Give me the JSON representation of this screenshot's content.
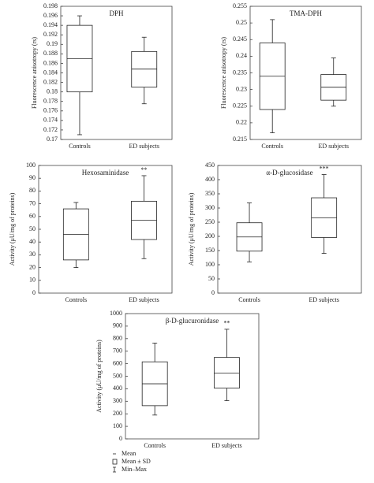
{
  "chart_data": [
    {
      "type": "box",
      "title": "DPH",
      "y_label": "Fluorescence anisotropy (rs)",
      "categories": [
        "Controls",
        "ED subjects"
      ],
      "boxes": [
        {
          "min": 0.171,
          "mean_minus_sd": 0.18,
          "mean": 0.187,
          "mean_plus_sd": 0.194,
          "max": 0.196
        },
        {
          "min": 0.1775,
          "mean_minus_sd": 0.181,
          "mean": 0.1848,
          "mean_plus_sd": 0.1885,
          "max": 0.1915
        }
      ],
      "annotations": [
        null,
        null
      ],
      "ylim": [
        0.17,
        0.198
      ],
      "yticks": [
        0.17,
        0.172,
        0.174,
        0.176,
        0.178,
        0.18,
        0.182,
        0.184,
        0.186,
        0.188,
        0.19,
        0.192,
        0.194,
        0.196,
        0.198
      ]
    },
    {
      "type": "box",
      "title": "TMA-DPH",
      "y_label": "Fluorescence anisotropy (rs)",
      "categories": [
        "Controls",
        "ED subjects"
      ],
      "boxes": [
        {
          "min": 0.217,
          "mean_minus_sd": 0.224,
          "mean": 0.234,
          "mean_plus_sd": 0.244,
          "max": 0.251
        },
        {
          "min": 0.225,
          "mean_minus_sd": 0.2268,
          "mean": 0.2307,
          "mean_plus_sd": 0.2345,
          "max": 0.2395
        }
      ],
      "annotations": [
        null,
        null
      ],
      "ylim": [
        0.215,
        0.255
      ],
      "yticks": [
        0.215,
        0.22,
        0.225,
        0.23,
        0.235,
        0.24,
        0.245,
        0.25,
        0.255
      ]
    },
    {
      "type": "box",
      "title": "Hexosaminidase",
      "y_label": "Activity (μU/mg of proteins)",
      "categories": [
        "Controls",
        "ED subjects"
      ],
      "boxes": [
        {
          "min": 20,
          "mean_minus_sd": 26,
          "mean": 46,
          "mean_plus_sd": 66,
          "max": 71
        },
        {
          "min": 27,
          "mean_minus_sd": 42,
          "mean": 57,
          "mean_plus_sd": 72,
          "max": 92
        }
      ],
      "annotations": [
        null,
        "**"
      ],
      "ylim": [
        0,
        100
      ],
      "yticks": [
        0,
        10,
        20,
        30,
        40,
        50,
        60,
        70,
        80,
        90,
        100
      ]
    },
    {
      "type": "box",
      "title": "α-D-glucosidase",
      "y_label": "Activity (μU/mg of proteins)",
      "categories": [
        "Controls",
        "ED subjects"
      ],
      "boxes": [
        {
          "min": 110,
          "mean_minus_sd": 148,
          "mean": 198,
          "mean_plus_sd": 248,
          "max": 318
        },
        {
          "min": 140,
          "mean_minus_sd": 196,
          "mean": 265,
          "mean_plus_sd": 336,
          "max": 418
        }
      ],
      "annotations": [
        null,
        "***"
      ],
      "ylim": [
        0,
        450
      ],
      "yticks": [
        0,
        50,
        100,
        150,
        200,
        250,
        300,
        350,
        400,
        450
      ]
    },
    {
      "type": "box",
      "title": "β-D-glucuronidase",
      "y_label": "Activity (μU/mg of proteins)",
      "categories": [
        "Controls",
        "ED subjects"
      ],
      "boxes": [
        {
          "min": 190,
          "mean_minus_sd": 265,
          "mean": 440,
          "mean_plus_sd": 615,
          "max": 765
        },
        {
          "min": 305,
          "mean_minus_sd": 405,
          "mean": 525,
          "mean_plus_sd": 650,
          "max": 875
        }
      ],
      "annotations": [
        null,
        "**"
      ],
      "ylim": [
        0,
        1000
      ],
      "yticks": [
        0,
        100,
        200,
        300,
        400,
        500,
        600,
        700,
        800,
        900,
        1000
      ]
    }
  ],
  "legend": [
    "Mean",
    "Mean ± SD",
    "Min–Max"
  ]
}
